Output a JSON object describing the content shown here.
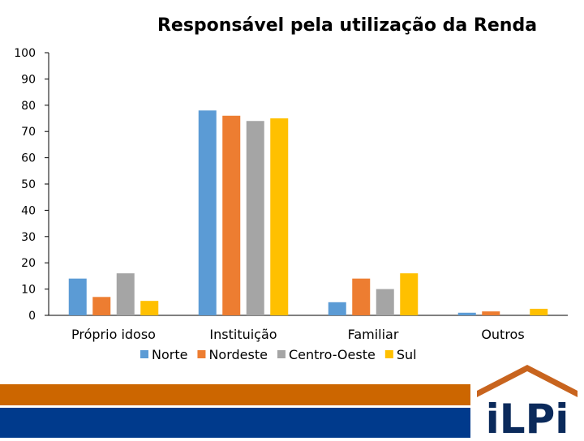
{
  "colors": {
    "background": "#ffffff",
    "band_orange": "#cc6600",
    "band_blue": "#003a8c",
    "logo_roof": "#c8641e",
    "logo_text": "#0b2a5b"
  },
  "logo": {
    "text": "iLPi"
  },
  "chart_data": {
    "type": "bar",
    "title": "Responsável pela utilização da Renda",
    "xlabel": "",
    "ylabel": "",
    "ylim": [
      0,
      100
    ],
    "yticks": [
      0,
      10,
      20,
      30,
      40,
      50,
      60,
      70,
      80,
      90,
      100
    ],
    "grid": false,
    "legend_position": "bottom",
    "categories": [
      "Próprio idoso",
      "Instituição",
      "Familiar",
      "Outros"
    ],
    "series": [
      {
        "name": "Norte",
        "color": "#5b9bd5",
        "values": [
          14,
          78,
          5,
          1
        ]
      },
      {
        "name": "Nordeste",
        "color": "#ed7d31",
        "values": [
          7,
          76,
          14,
          1.5
        ]
      },
      {
        "name": "Centro-Oeste",
        "color": "#a5a5a5",
        "values": [
          16,
          74,
          10,
          0
        ]
      },
      {
        "name": "Sul",
        "color": "#ffc000",
        "values": [
          5.5,
          75,
          16,
          2.5
        ]
      }
    ]
  }
}
